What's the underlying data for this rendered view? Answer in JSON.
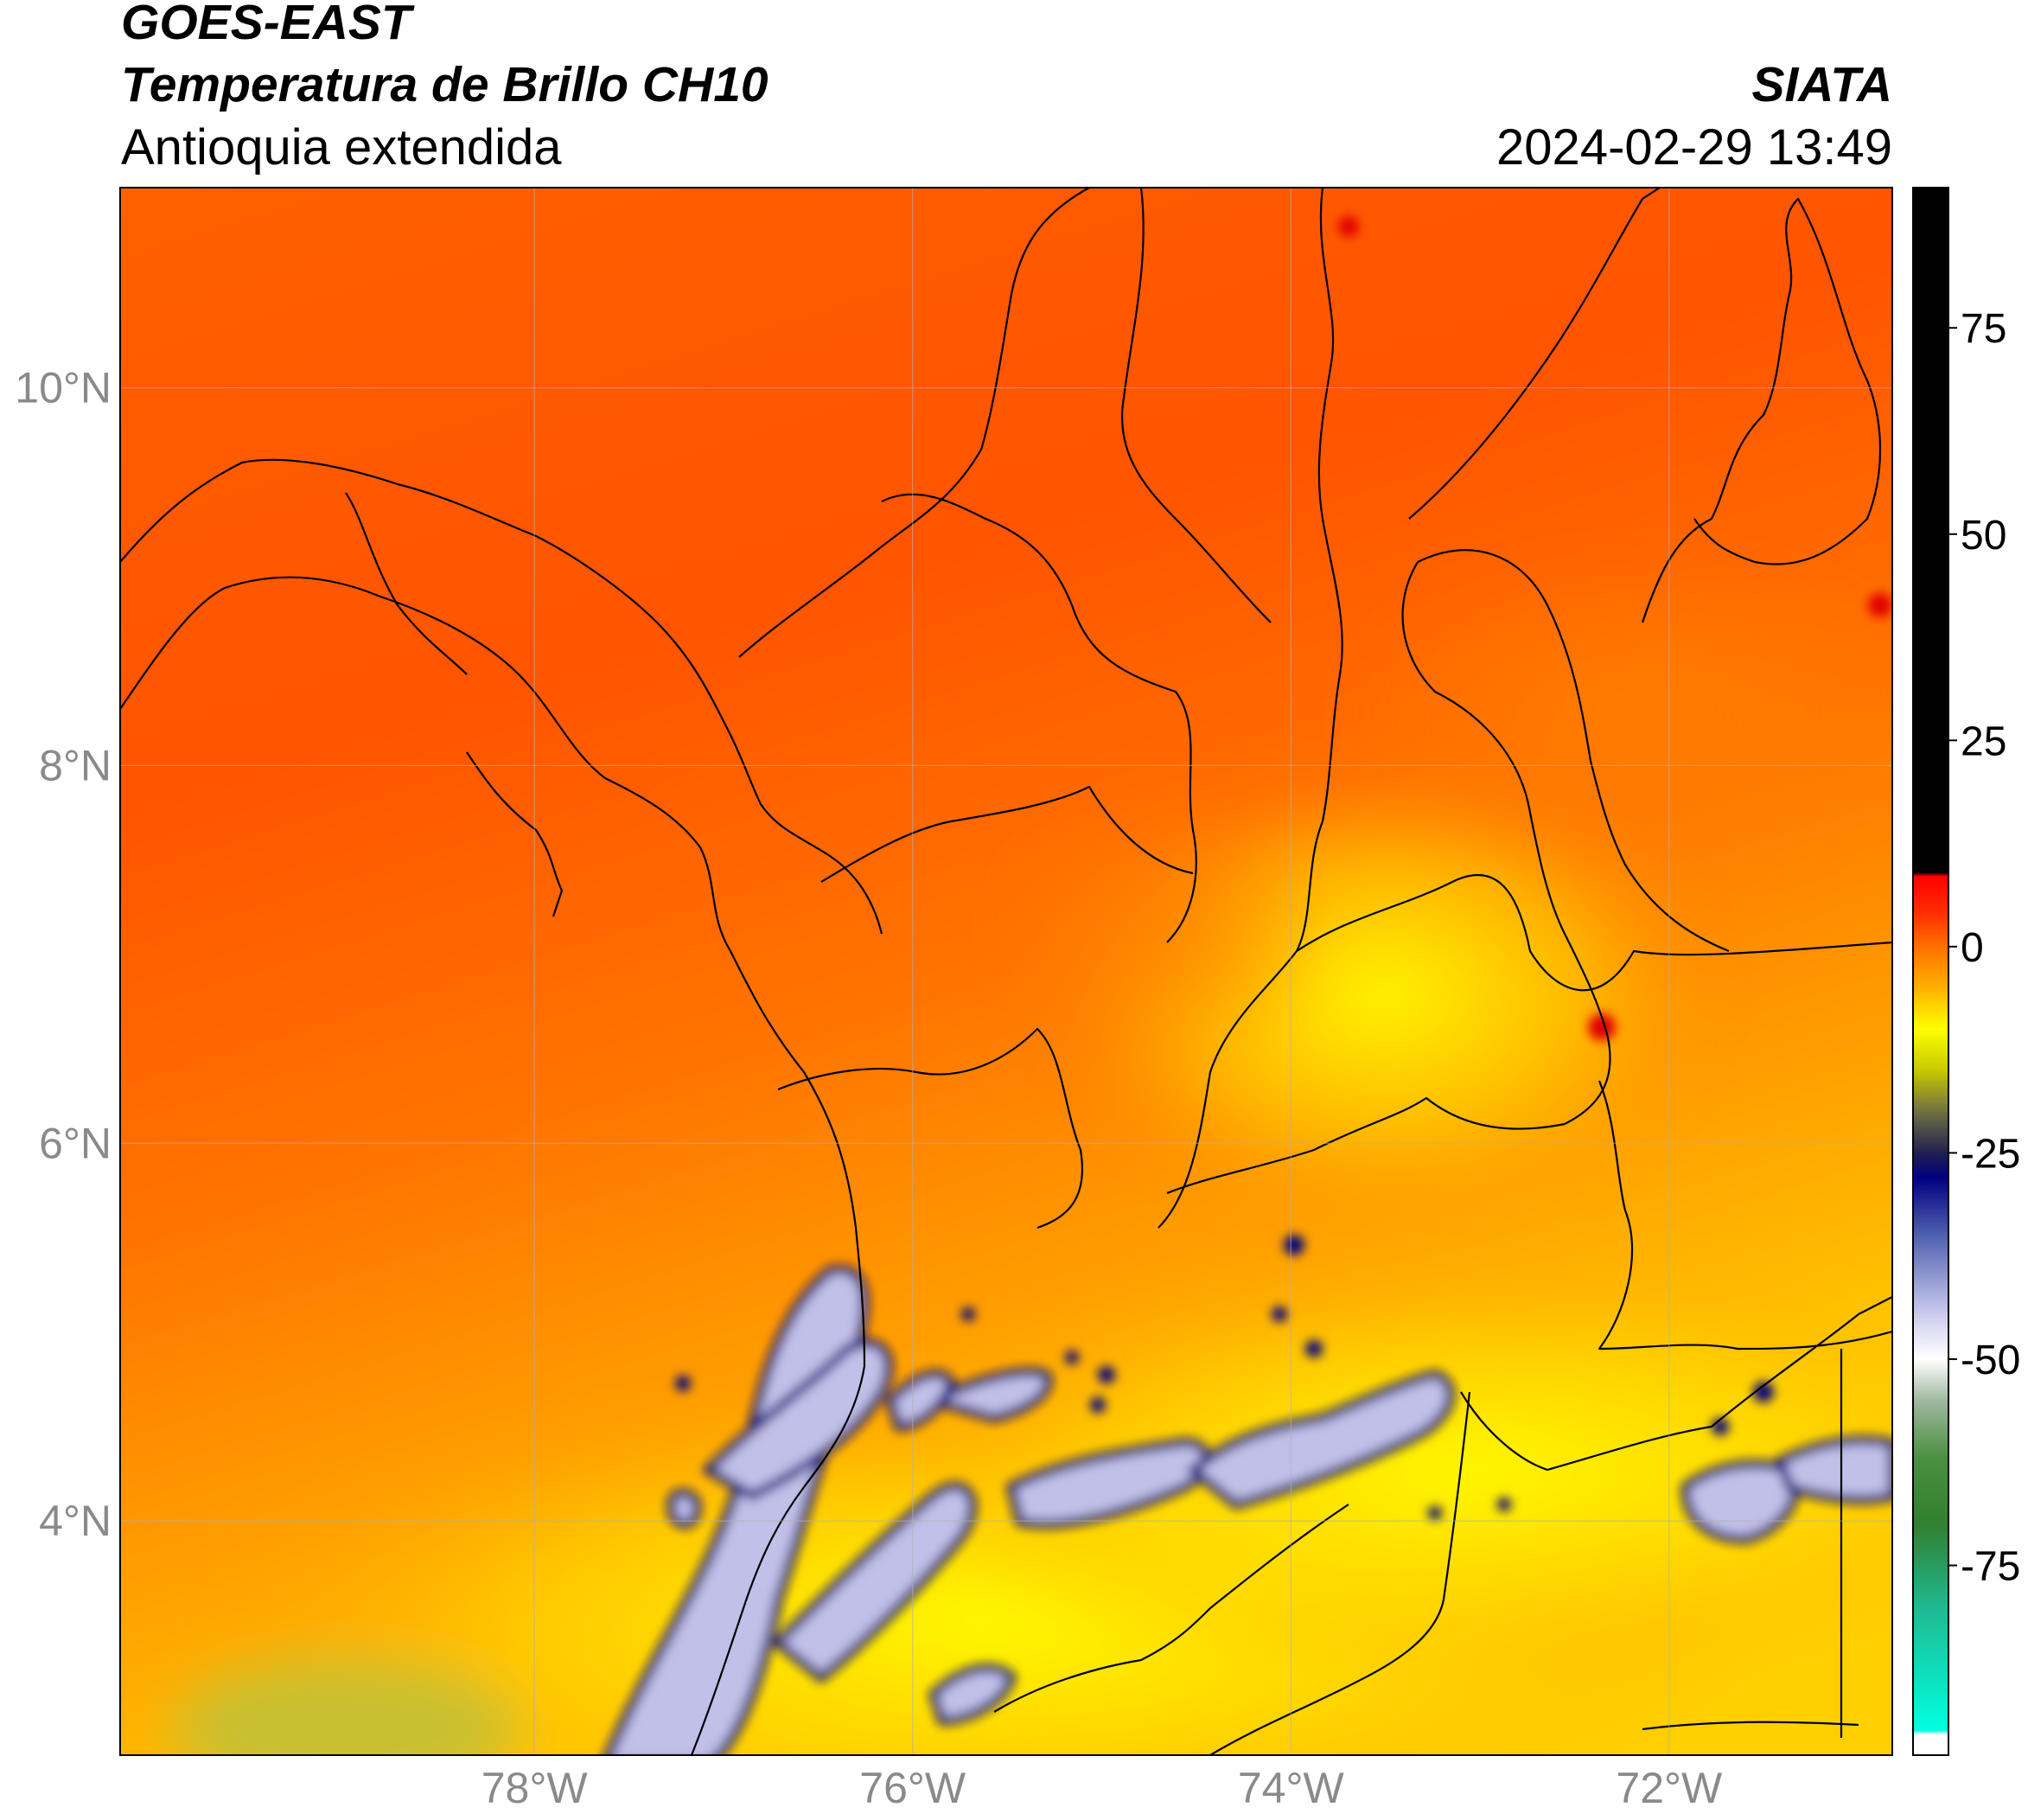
{
  "header": {
    "title": "GOES-EAST",
    "subtitle": "Temperatura de Brillo CH10",
    "region": "Antioquia extendida",
    "source": "SIATA",
    "datetime": "2024-02-29 13:49"
  },
  "map": {
    "lon_range": [
      -80.19,
      -70.82
    ],
    "lat_range": [
      2.76,
      11.06
    ],
    "lat_ticks": [
      {
        "value": 10,
        "label": "10°N"
      },
      {
        "value": 8,
        "label": "8°N"
      },
      {
        "value": 6,
        "label": "6°N"
      },
      {
        "value": 4,
        "label": "4°N"
      }
    ],
    "lon_ticks": [
      {
        "value": -78,
        "label": "78°W"
      },
      {
        "value": -76,
        "label": "76°W"
      },
      {
        "value": -74,
        "label": "74°W"
      },
      {
        "value": -72,
        "label": "72°W"
      }
    ],
    "grid": true
  },
  "colorbar": {
    "lim": [
      -98,
      92
    ],
    "ticks": [
      75,
      50,
      25,
      0,
      -25,
      -50,
      -75
    ],
    "colormap": [
      [
        92,
        "#000000"
      ],
      [
        9,
        "#000000"
      ],
      [
        8.5,
        "#ff0000"
      ],
      [
        4,
        "#ff3000"
      ],
      [
        0,
        "#ff7000"
      ],
      [
        -5,
        "#ffb000"
      ],
      [
        -10,
        "#ffff00"
      ],
      [
        -15,
        "#c8c800"
      ],
      [
        -20,
        "#707040"
      ],
      [
        -25,
        "#202050"
      ],
      [
        -28,
        "#000080"
      ],
      [
        -35,
        "#5060b0"
      ],
      [
        -45,
        "#d0d0f0"
      ],
      [
        -50,
        "#ffffff"
      ],
      [
        -55,
        "#a0b8a0"
      ],
      [
        -62,
        "#4a9040"
      ],
      [
        -70,
        "#308030"
      ],
      [
        -80,
        "#20b890"
      ],
      [
        -95,
        "#00ffe0"
      ],
      [
        -95.5,
        "#ffffff"
      ],
      [
        -98,
        "#ffffff"
      ]
    ]
  }
}
